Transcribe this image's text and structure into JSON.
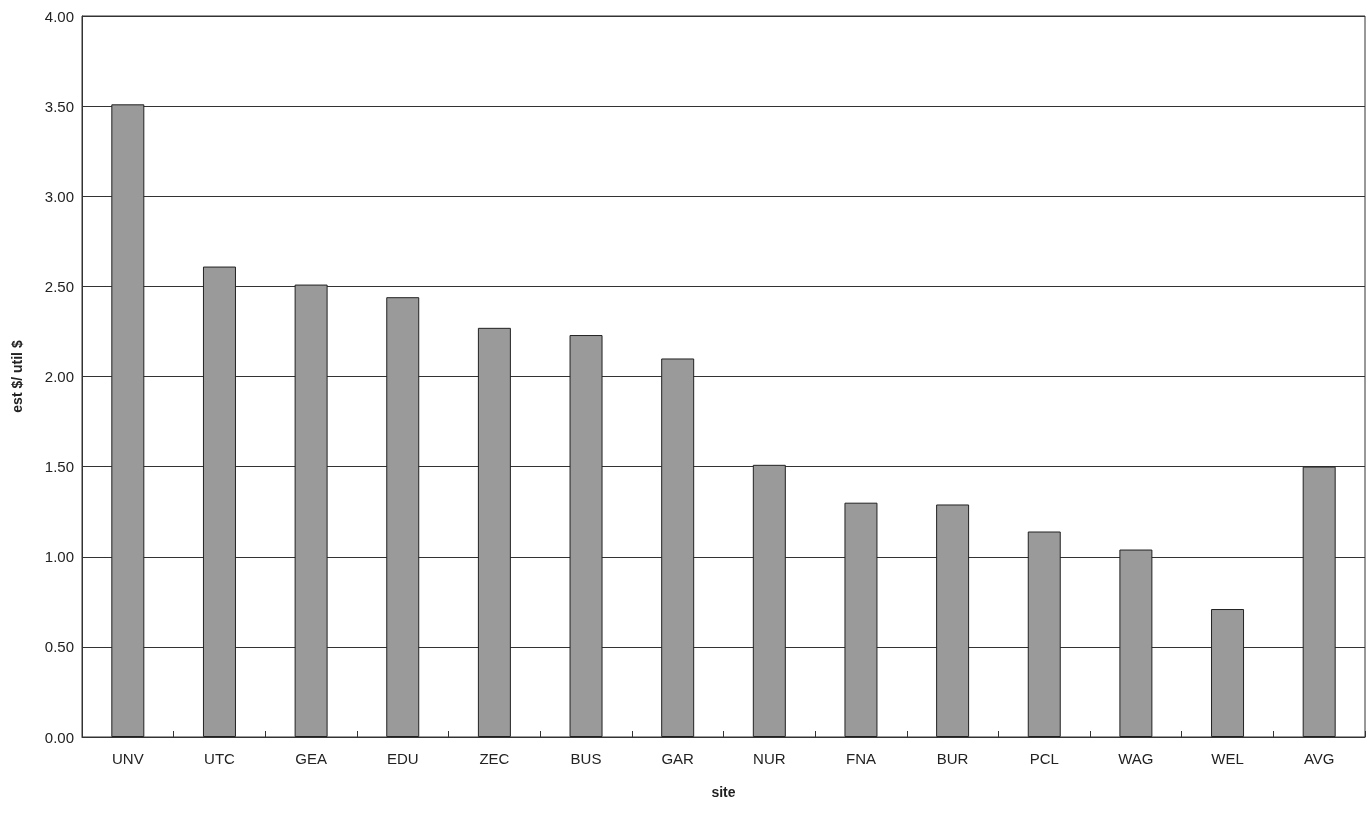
{
  "chart_data": {
    "type": "bar",
    "xlabel": "site",
    "ylabel": "est $/ util $",
    "categories": [
      "UNV",
      "UTC",
      "GEA",
      "EDU",
      "ZEC",
      "BUS",
      "GAR",
      "NUR",
      "FNA",
      "BUR",
      "PCL",
      "WAG",
      "WEL",
      "AVG"
    ],
    "values": [
      3.51,
      2.61,
      2.51,
      2.44,
      2.27,
      2.23,
      2.1,
      1.51,
      1.3,
      1.29,
      1.14,
      1.04,
      0.71,
      1.5
    ],
    "color": "#9a9a9a",
    "ylim": [
      0,
      4
    ],
    "yticks": [
      {
        "value": 0,
        "label": "0.00"
      },
      {
        "value": 0.5,
        "label": "0.50"
      },
      {
        "value": 1,
        "label": "1.00"
      },
      {
        "value": 1.5,
        "label": "1.50"
      },
      {
        "value": 2,
        "label": "2.00"
      },
      {
        "value": 2.5,
        "label": "2.50"
      },
      {
        "value": 3,
        "label": "3.00"
      },
      {
        "value": 3.5,
        "label": "3.50"
      },
      {
        "value": 4,
        "label": "4.00"
      }
    ],
    "grid": "y"
  }
}
